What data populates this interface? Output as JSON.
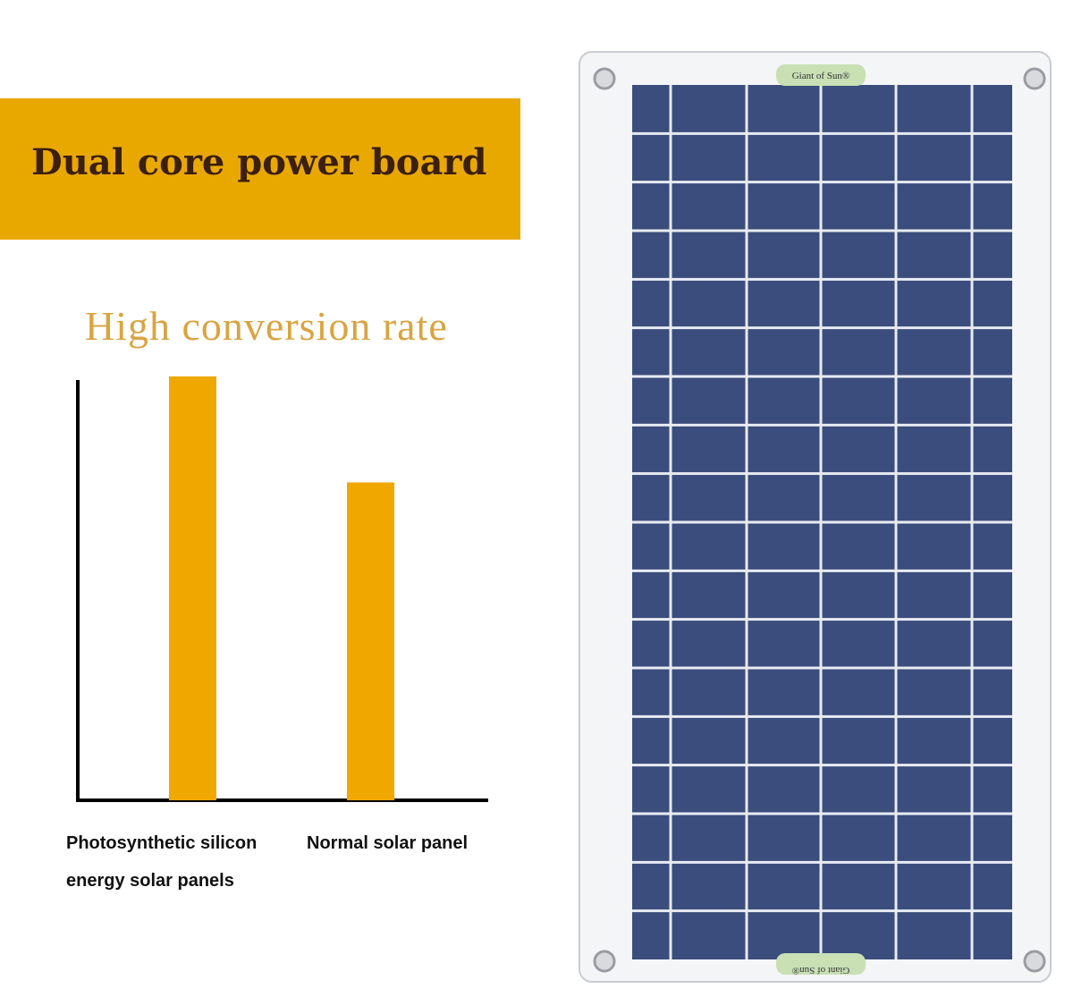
{
  "header": {
    "title": "Dual core power board"
  },
  "chart_data": {
    "type": "bar",
    "title": "High conversion rate",
    "categories": [
      "Photosynthetic silicon energy solar panels",
      "Normal solar panel"
    ],
    "values": [
      100,
      75
    ],
    "color": "#f0a800",
    "ylim": [
      0,
      100
    ]
  },
  "panel": {
    "labels": [
      "Giant of Sun®",
      "Giant of Sun®"
    ]
  }
}
